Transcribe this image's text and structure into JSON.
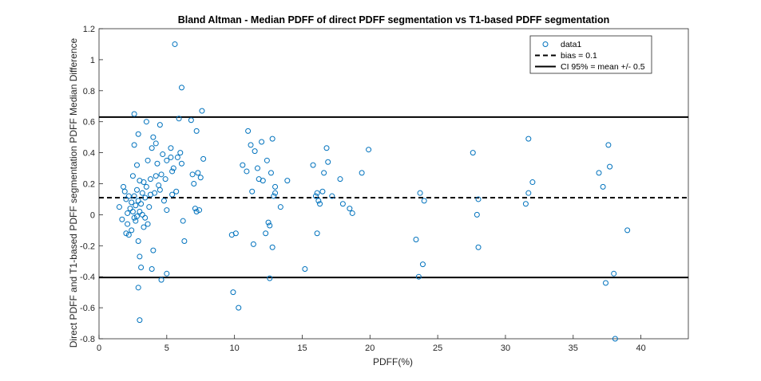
{
  "chart_data": {
    "type": "scatter",
    "title": "Bland Altman - Median PDFF of direct PDFF segmentation vs T1-based PDFF segmentation",
    "xlabel": "PDFF(%)",
    "ylabel": "Direct PDFF and T1-based PDFF segmentation PDFF Median Difference",
    "xlim": [
      0,
      43.5
    ],
    "ylim": [
      -0.8,
      1.2
    ],
    "xticks": [
      0,
      5,
      10,
      15,
      20,
      25,
      30,
      35,
      40
    ],
    "yticks": [
      -0.8,
      -0.6,
      -0.4,
      -0.2,
      0,
      0.2,
      0.4,
      0.6,
      0.8,
      1,
      1.2
    ],
    "xtick_labels": [
      "0",
      "5",
      "10",
      "15",
      "20",
      "25",
      "30",
      "35",
      "40"
    ],
    "ytick_labels": [
      "-0.8",
      "-0.6",
      "-0.4",
      "-0.2",
      "0",
      "0.2",
      "0.4",
      "0.6",
      "0.8",
      "1",
      "1.2"
    ],
    "grid": false,
    "legend_position": "top-right",
    "colors": {
      "marker": "#0072BD",
      "lines": "#000000"
    },
    "series": [
      {
        "name": "data1",
        "marker": "circle-open",
        "points": [
          [
            1.5,
            0.05
          ],
          [
            1.7,
            -0.03
          ],
          [
            1.8,
            0.18
          ],
          [
            1.9,
            0.15
          ],
          [
            2.0,
            -0.12
          ],
          [
            2.0,
            0.1
          ],
          [
            2.1,
            -0.06
          ],
          [
            2.1,
            0.01
          ],
          [
            2.2,
            0.12
          ],
          [
            2.2,
            -0.13
          ],
          [
            2.3,
            0.04
          ],
          [
            2.4,
            -0.1
          ],
          [
            2.4,
            0.08
          ],
          [
            2.5,
            0.02
          ],
          [
            2.5,
            0.25
          ],
          [
            2.6,
            -0.02
          ],
          [
            2.6,
            0.12
          ],
          [
            2.6,
            0.45
          ],
          [
            2.6,
            0.65
          ],
          [
            2.7,
            0.06
          ],
          [
            2.7,
            -0.04
          ],
          [
            2.8,
            0.16
          ],
          [
            2.8,
            -0.01
          ],
          [
            2.8,
            0.32
          ],
          [
            2.9,
            0.52
          ],
          [
            2.9,
            -0.17
          ],
          [
            2.9,
            0.09
          ],
          [
            2.9,
            -0.47
          ],
          [
            3.0,
            0.22
          ],
          [
            3.0,
            0.02
          ],
          [
            3.0,
            -0.27
          ],
          [
            3.0,
            -0.68
          ],
          [
            3.1,
            0.07
          ],
          [
            3.1,
            -0.34
          ],
          [
            3.2,
            0.14
          ],
          [
            3.2,
            0.0
          ],
          [
            3.3,
            0.21
          ],
          [
            3.3,
            -0.08
          ],
          [
            3.4,
            0.11
          ],
          [
            3.4,
            -0.02
          ],
          [
            3.5,
            0.6
          ],
          [
            3.5,
            0.18
          ],
          [
            3.6,
            0.35
          ],
          [
            3.6,
            -0.06
          ],
          [
            3.7,
            0.05
          ],
          [
            3.8,
            0.23
          ],
          [
            3.8,
            0.13
          ],
          [
            3.9,
            0.43
          ],
          [
            3.9,
            -0.35
          ],
          [
            4.0,
            -0.23
          ],
          [
            4.0,
            0.5
          ],
          [
            4.1,
            0.14
          ],
          [
            4.2,
            0.25
          ],
          [
            4.2,
            0.46
          ],
          [
            4.3,
            0.33
          ],
          [
            4.4,
            0.19
          ],
          [
            4.5,
            0.16
          ],
          [
            4.5,
            0.58
          ],
          [
            4.6,
            0.26
          ],
          [
            4.6,
            -0.42
          ],
          [
            4.7,
            0.39
          ],
          [
            4.8,
            0.09
          ],
          [
            4.9,
            0.23
          ],
          [
            5.0,
            0.03
          ],
          [
            5.0,
            0.35
          ],
          [
            5.0,
            -0.38
          ],
          [
            5.3,
            0.37
          ],
          [
            5.3,
            0.43
          ],
          [
            5.4,
            0.13
          ],
          [
            5.4,
            0.28
          ],
          [
            5.5,
            0.3
          ],
          [
            5.6,
            1.1
          ],
          [
            5.7,
            0.15
          ],
          [
            5.8,
            0.37
          ],
          [
            5.9,
            0.62
          ],
          [
            6.0,
            0.4
          ],
          [
            6.1,
            0.82
          ],
          [
            6.1,
            0.33
          ],
          [
            6.2,
            -0.04
          ],
          [
            6.3,
            -0.17
          ],
          [
            6.8,
            0.61
          ],
          [
            6.9,
            0.26
          ],
          [
            7.0,
            0.2
          ],
          [
            7.1,
            0.04
          ],
          [
            7.2,
            0.02
          ],
          [
            7.2,
            0.54
          ],
          [
            7.3,
            0.27
          ],
          [
            7.4,
            0.03
          ],
          [
            7.5,
            0.24
          ],
          [
            7.6,
            0.67
          ],
          [
            7.7,
            0.36
          ],
          [
            9.8,
            -0.13
          ],
          [
            9.9,
            -0.5
          ],
          [
            10.1,
            -0.12
          ],
          [
            10.3,
            -0.6
          ],
          [
            10.6,
            0.32
          ],
          [
            10.9,
            0.28
          ],
          [
            11.0,
            0.54
          ],
          [
            11.2,
            0.45
          ],
          [
            11.3,
            0.15
          ],
          [
            11.4,
            -0.19
          ],
          [
            11.5,
            0.41
          ],
          [
            11.7,
            0.3
          ],
          [
            11.8,
            0.23
          ],
          [
            12.0,
            0.47
          ],
          [
            12.1,
            0.22
          ],
          [
            12.3,
            -0.12
          ],
          [
            12.4,
            0.35
          ],
          [
            12.5,
            -0.05
          ],
          [
            12.6,
            -0.07
          ],
          [
            12.6,
            -0.41
          ],
          [
            12.7,
            0.27
          ],
          [
            12.8,
            0.49
          ],
          [
            12.8,
            -0.21
          ],
          [
            12.9,
            0.12
          ],
          [
            13.0,
            0.14
          ],
          [
            13.0,
            0.18
          ],
          [
            13.4,
            0.05
          ],
          [
            13.9,
            0.22
          ],
          [
            15.2,
            -0.35
          ],
          [
            15.8,
            0.32
          ],
          [
            16.0,
            0.12
          ],
          [
            16.1,
            -0.12
          ],
          [
            16.1,
            0.14
          ],
          [
            16.2,
            0.09
          ],
          [
            16.3,
            0.07
          ],
          [
            16.5,
            0.15
          ],
          [
            16.6,
            0.27
          ],
          [
            16.8,
            0.43
          ],
          [
            16.9,
            0.34
          ],
          [
            17.2,
            0.12
          ],
          [
            17.8,
            0.23
          ],
          [
            18.0,
            0.07
          ],
          [
            18.5,
            0.04
          ],
          [
            18.7,
            0.01
          ],
          [
            19.4,
            0.27
          ],
          [
            19.9,
            0.42
          ],
          [
            23.4,
            -0.16
          ],
          [
            23.6,
            -0.4
          ],
          [
            23.7,
            0.14
          ],
          [
            23.9,
            -0.32
          ],
          [
            24.0,
            0.09
          ],
          [
            27.6,
            0.4
          ],
          [
            27.9,
            0.0
          ],
          [
            28.0,
            0.1
          ],
          [
            28.0,
            -0.21
          ],
          [
            31.5,
            0.07
          ],
          [
            31.7,
            0.49
          ],
          [
            31.7,
            0.14
          ],
          [
            32.0,
            0.21
          ],
          [
            36.9,
            0.27
          ],
          [
            37.2,
            0.18
          ],
          [
            37.4,
            -0.44
          ],
          [
            37.6,
            0.45
          ],
          [
            37.7,
            0.31
          ],
          [
            38.0,
            -0.38
          ],
          [
            38.1,
            -0.8
          ],
          [
            39.0,
            -0.1
          ]
        ]
      },
      {
        "name": "bias = 0.1",
        "type": "hline",
        "style": "dashed",
        "y": 0.11
      },
      {
        "name": "CI 95% = mean +/- 0.5",
        "type": "hline",
        "style": "solid",
        "y": 0.63
      },
      {
        "type": "hline",
        "style": "solid",
        "y": -0.405
      }
    ]
  }
}
